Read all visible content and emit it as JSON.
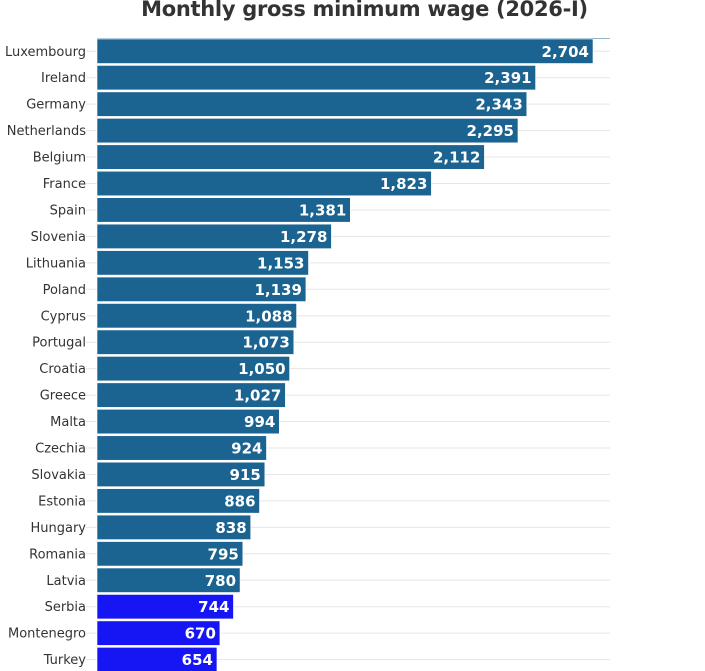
{
  "chart_data": {
    "type": "bar",
    "orientation": "horizontal",
    "title": "Monthly gross minimum wage (2026-I)",
    "xlabel": "",
    "ylabel": "",
    "grid": true,
    "legend": null,
    "categories": [
      "Luxembourg",
      "Ireland",
      "Germany",
      "Netherlands",
      "Belgium",
      "France",
      "Spain",
      "Slovenia",
      "Lithuania",
      "Poland",
      "Cyprus",
      "Portugal",
      "Croatia",
      "Greece",
      "Malta",
      "Czechia",
      "Slovakia",
      "Estonia",
      "Hungary",
      "Romania",
      "Latvia",
      "Serbia",
      "Montenegro",
      "Turkey"
    ],
    "values": [
      2704,
      2391,
      2343,
      2295,
      2112,
      1823,
      1381,
      1278,
      1153,
      1139,
      1088,
      1073,
      1050,
      1027,
      994,
      924,
      915,
      886,
      838,
      795,
      780,
      744,
      670,
      654
    ],
    "value_labels": [
      "2,704",
      "2,391",
      "2,343",
      "2,295",
      "2,112",
      "1,823",
      "1,381",
      "1,278",
      "1,153",
      "1,139",
      "1,088",
      "1,073",
      "1,050",
      "1,027",
      "994",
      "924",
      "915",
      "886",
      "838",
      "795",
      "780",
      "744",
      "670",
      "654"
    ],
    "highlighted": [
      "Serbia",
      "Montenegro",
      "Turkey"
    ],
    "colors": {
      "default": "#1b6390",
      "highlight": "#1616f5",
      "grid": "#e6e6e6",
      "text": "#333333"
    },
    "xlim": [
      0,
      2790
    ]
  }
}
